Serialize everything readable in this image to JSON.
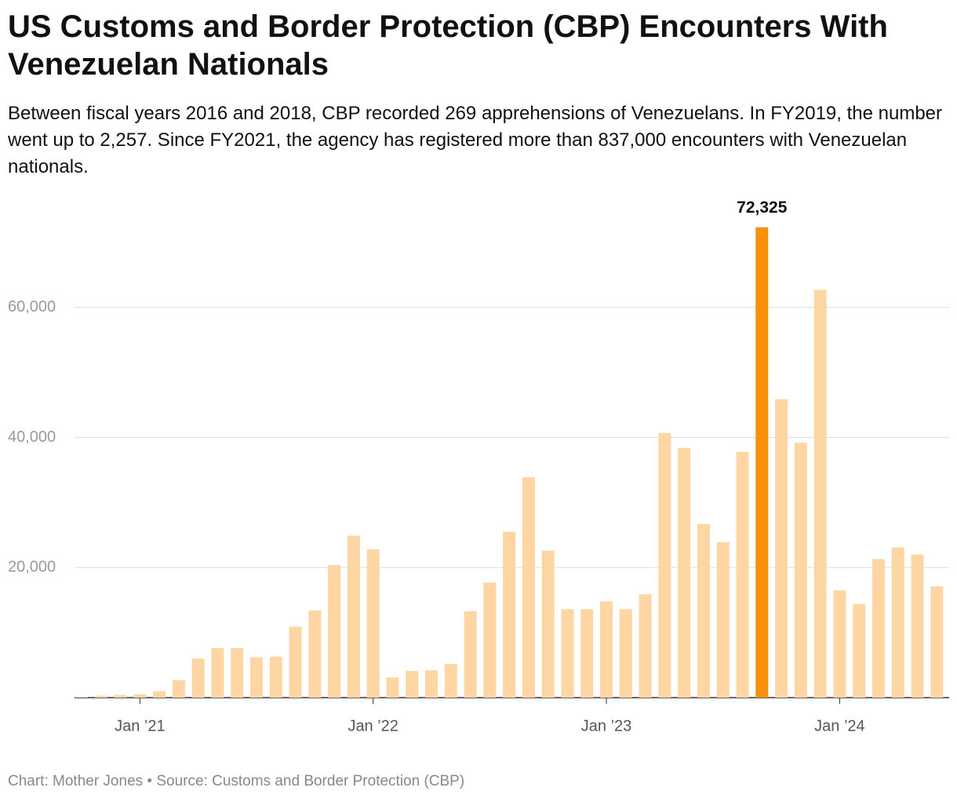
{
  "chart_data": {
    "type": "bar",
    "title": "US Customs and Border Protection (CBP) Encounters With Venezuelan Nationals",
    "subtitle": "Between fiscal years 2016 and 2018, CBP recorded 269 apprehensions of Venezuelans. In FY2019, the number went up to 2,257. Since FY2021, the agency has registered more than 837,000 encounters with Venezuelan nationals.",
    "footer": "Chart: Mother Jones • Source: Customs and Border Protection (CBP)",
    "categories": [
      null,
      null,
      null,
      "Jan ’21",
      null,
      null,
      null,
      null,
      null,
      null,
      null,
      null,
      null,
      null,
      null,
      "Jan ’22",
      null,
      null,
      null,
      null,
      null,
      null,
      null,
      null,
      null,
      null,
      null,
      "Jan ’23",
      null,
      null,
      null,
      null,
      null,
      null,
      null,
      null,
      null,
      null,
      null,
      "Jan ’24",
      null,
      null,
      null,
      null,
      null
    ],
    "values": [
      100,
      300,
      400,
      500,
      1000,
      2700,
      6000,
      7600,
      7600,
      6200,
      6300,
      10900,
      13400,
      20400,
      24900,
      22800,
      3100,
      4100,
      4200,
      5200,
      13300,
      17700,
      25500,
      33900,
      22600,
      13600,
      13600,
      14800,
      13600,
      15900,
      40700,
      38400,
      26700,
      23900,
      37800,
      72325,
      45900,
      39200,
      62700,
      16500,
      14400,
      21300,
      23100,
      22000,
      17100
    ],
    "value_labels": [
      null,
      null,
      null,
      null,
      null,
      null,
      null,
      null,
      null,
      null,
      null,
      null,
      null,
      null,
      null,
      null,
      null,
      null,
      null,
      null,
      null,
      null,
      null,
      null,
      null,
      null,
      null,
      null,
      null,
      null,
      null,
      null,
      null,
      null,
      null,
      "72,325",
      null,
      null,
      null,
      null,
      null,
      null,
      null,
      null,
      null
    ],
    "colors": [
      "#fdd6a3",
      "#fdd6a3",
      "#fdd6a3",
      "#fdd6a3",
      "#fdd6a3",
      "#fdd6a3",
      "#fdd6a3",
      "#fdd6a3",
      "#fdd6a3",
      "#fdd6a3",
      "#fdd6a3",
      "#fdd6a3",
      "#fdd6a3",
      "#fdd6a3",
      "#fdd6a3",
      "#fdd6a3",
      "#fdd6a3",
      "#fdd6a3",
      "#fdd6a3",
      "#fdd6a3",
      "#fdd6a3",
      "#fdd6a3",
      "#fdd6a3",
      "#fdd6a3",
      "#fdd6a3",
      "#fdd6a3",
      "#fdd6a3",
      "#fdd6a3",
      "#fdd6a3",
      "#fdd6a3",
      "#fdd6a3",
      "#fdd6a3",
      "#fdd6a3",
      "#fdd6a3",
      "#fdd6a3",
      "#f7900a",
      "#fdd6a3",
      "#fdd6a3",
      "#fdd6a3",
      "#fdd6a3",
      "#fdd6a3",
      "#fdd6a3",
      "#fdd6a3",
      "#fdd6a3",
      "#fdd6a3"
    ],
    "ylim": [
      0,
      75000
    ],
    "yticks": [
      {
        "value": 20000,
        "label": "20,000"
      },
      {
        "value": 40000,
        "label": "40,000"
      },
      {
        "value": 60000,
        "label": "60,000"
      }
    ],
    "grid": true
  }
}
